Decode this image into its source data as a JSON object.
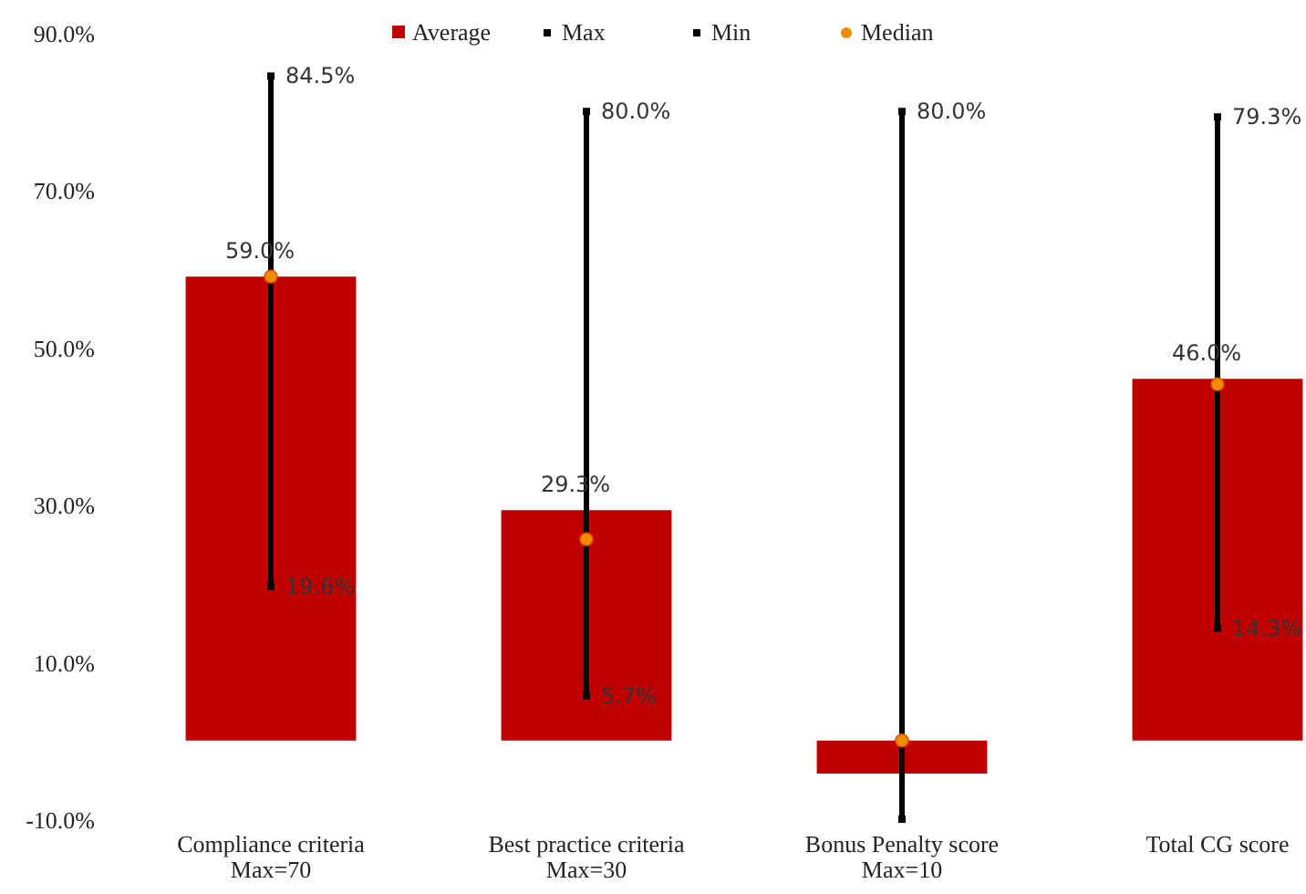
{
  "chart_data": {
    "type": "bar",
    "categories": [
      "Compliance criteria\nMax=70",
      "Best practice criteria\nMax=30",
      "Bonus Penalty score\nMax=10",
      "Total CG score"
    ],
    "series": [
      {
        "name": "Average",
        "color": "#c00000",
        "values": [
          59.0,
          29.3,
          -4.2,
          46.0
        ],
        "value_labels": [
          "59.0%",
          "29.3%",
          null,
          "46.0%"
        ]
      },
      {
        "name": "Max",
        "type": "scatter",
        "marker": "square",
        "color": "#000000",
        "values": [
          84.5,
          80.0,
          80.0,
          79.3
        ],
        "value_labels": [
          "84.5%",
          "80.0%",
          "80.0%",
          "79.3%"
        ]
      },
      {
        "name": "Min",
        "type": "scatter",
        "marker": "square",
        "color": "#000000",
        "values": [
          19.6,
          5.7,
          -10,
          14.3
        ],
        "value_labels": [
          "19.6%",
          "5.7%",
          null,
          "14.3%"
        ]
      },
      {
        "name": "Median",
        "type": "scatter",
        "marker": "circle",
        "color": "#f08c00",
        "values": [
          59.0,
          25.6,
          0,
          45.3
        ]
      }
    ],
    "ylim": [
      -10,
      90
    ],
    "yticks": [
      {
        "value": -10,
        "label": "-10.0%"
      },
      {
        "value": 10,
        "label": "10.0%"
      },
      {
        "value": 30,
        "label": "30.0%"
      },
      {
        "value": 50,
        "label": "50.0%"
      },
      {
        "value": 70,
        "label": "70.0%"
      },
      {
        "value": 90,
        "label": "90.0%"
      }
    ],
    "legend": "top"
  }
}
